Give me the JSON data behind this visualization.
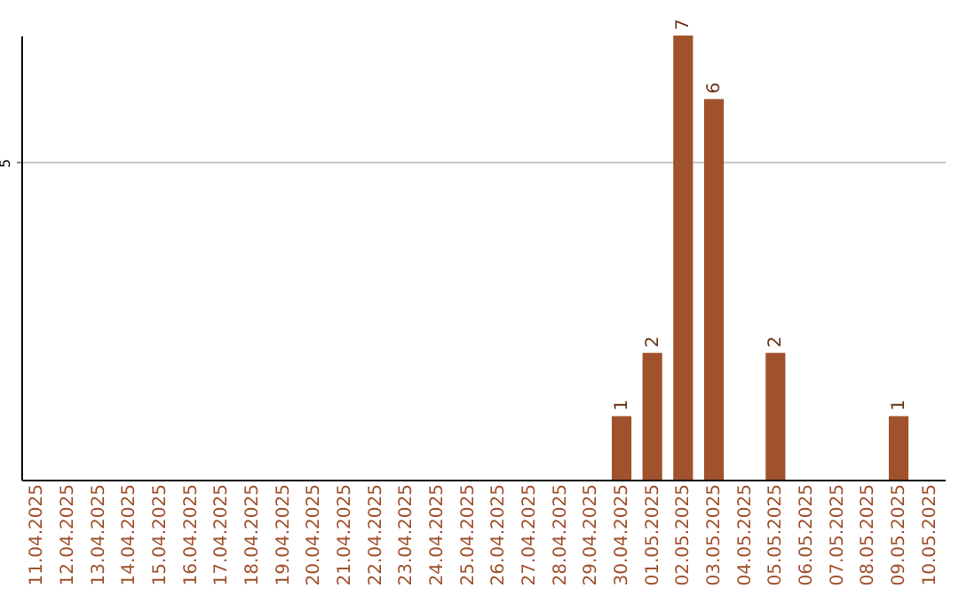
{
  "chart_data": {
    "type": "bar",
    "categories": [
      "11.04.2025",
      "12.04.2025",
      "13.04.2025",
      "14.04.2025",
      "15.04.2025",
      "16.04.2025",
      "17.04.2025",
      "18.04.2025",
      "19.04.2025",
      "20.04.2025",
      "21.04.2025",
      "22.04.2025",
      "23.04.2025",
      "24.04.2025",
      "25.04.2025",
      "26.04.2025",
      "27.04.2025",
      "28.04.2025",
      "29.04.2025",
      "30.04.2025",
      "01.05.2025",
      "02.05.2025",
      "03.05.2025",
      "04.05.2025",
      "05.05.2025",
      "06.05.2025",
      "07.05.2025",
      "08.05.2025",
      "09.05.2025",
      "10.05.2025"
    ],
    "values": [
      null,
      null,
      null,
      null,
      null,
      null,
      null,
      null,
      null,
      null,
      null,
      null,
      null,
      null,
      null,
      null,
      null,
      null,
      null,
      1,
      2,
      7,
      6,
      null,
      2,
      null,
      null,
      null,
      1,
      null
    ],
    "color": "#a0522d",
    "ylim": [
      0,
      7
    ],
    "yticks": [
      5
    ],
    "grid": "y",
    "data_labels": true
  }
}
